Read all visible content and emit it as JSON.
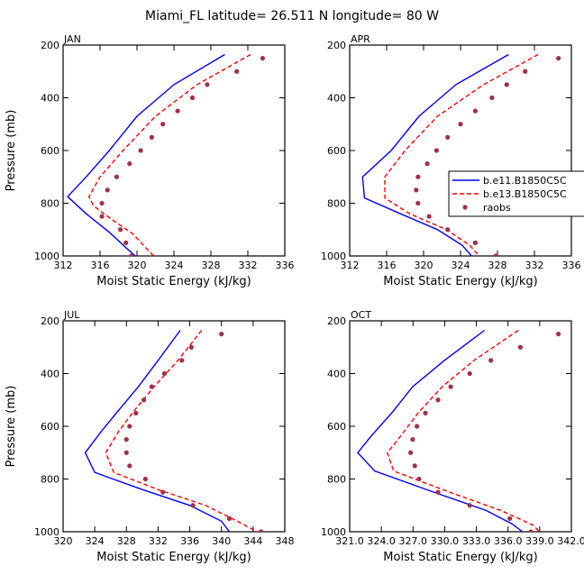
{
  "figure": {
    "title": "Miami_FL  latitude= 26.511 N longitude= 80 W",
    "xlabel": "Moist Static Energy (kJ/kg)",
    "ylabel": "Pressure (mb)"
  },
  "legend": {
    "placement": "right-of-APR-panel",
    "entries": [
      {
        "label": "b.e11.B1850C5C",
        "style": "solid",
        "color": "#0000ff"
      },
      {
        "label": "b.e13.B1850C5C",
        "style": "dashed",
        "color": "#ff0000"
      },
      {
        "label": "raobs",
        "style": "marker",
        "color": "#a0304a"
      }
    ]
  },
  "chart_data": [
    {
      "type": "line",
      "panel": "JAN",
      "xlim": [
        312,
        336
      ],
      "xticks": [
        312,
        316,
        320,
        324,
        328,
        332,
        336
      ],
      "xtick_labels": [
        "312",
        "316",
        "320",
        "324",
        "328",
        "332",
        "336"
      ],
      "ylim": [
        1000,
        200
      ],
      "yticks": [
        200,
        400,
        600,
        800,
        1000
      ],
      "series": [
        {
          "name": "b.e11.B1850C5C",
          "color": "#0000ff",
          "style": "solid",
          "points": [
            [
              329.5,
              236
            ],
            [
              324,
              350
            ],
            [
              320,
              470
            ],
            [
              317,
              600
            ],
            [
              314.5,
              700
            ],
            [
              312.5,
              775
            ],
            [
              314.5,
              840
            ],
            [
              317,
              910
            ],
            [
              319,
              975
            ],
            [
              319.8,
              1000
            ]
          ]
        },
        {
          "name": "b.e13.B1850C5C",
          "color": "#ff0000",
          "style": "dashed",
          "points": [
            [
              332.3,
              236
            ],
            [
              326.5,
              350
            ],
            [
              322,
              470
            ],
            [
              318.5,
              600
            ],
            [
              316,
              700
            ],
            [
              314.8,
              775
            ],
            [
              315.3,
              810
            ],
            [
              316.8,
              850
            ],
            [
              319.5,
              915
            ],
            [
              321.8,
              1000
            ]
          ]
        },
        {
          "name": "raobs",
          "color": "#a0304a",
          "style": "marker",
          "points": [
            [
              333.6,
              250
            ],
            [
              330.8,
              300
            ],
            [
              327.6,
              350
            ],
            [
              326,
              400
            ],
            [
              324.4,
              450
            ],
            [
              322.8,
              500
            ],
            [
              321.6,
              550
            ],
            [
              320.4,
              600
            ],
            [
              319.2,
              650
            ],
            [
              317.8,
              700
            ],
            [
              316.8,
              750
            ],
            [
              316.2,
              800
            ],
            [
              316.2,
              850
            ],
            [
              318.2,
              900
            ],
            [
              318.8,
              950
            ],
            [
              319.4,
              1000
            ]
          ]
        }
      ]
    },
    {
      "type": "line",
      "panel": "APR",
      "xlim": [
        312,
        336
      ],
      "xticks": [
        312,
        316,
        320,
        324,
        328,
        332,
        336
      ],
      "xtick_labels": [
        "312",
        "316",
        "320",
        "324",
        "328",
        "332",
        "336"
      ],
      "ylim": [
        1000,
        200
      ],
      "yticks": [
        200,
        400,
        600,
        800,
        1000
      ],
      "series": [
        {
          "name": "b.e11.B1850C5C",
          "color": "#0000ff",
          "style": "solid",
          "points": [
            [
              329.2,
              236
            ],
            [
              323.5,
              350
            ],
            [
              319.5,
              470
            ],
            [
              316.5,
              600
            ],
            [
              313.4,
              700
            ],
            [
              313.6,
              780
            ],
            [
              317.5,
              840
            ],
            [
              321.5,
              900
            ],
            [
              324.2,
              960
            ],
            [
              325.2,
              1000
            ]
          ]
        },
        {
          "name": "b.e13.B1850C5C",
          "color": "#ff0000",
          "style": "dashed",
          "points": [
            [
              332.4,
              236
            ],
            [
              326.5,
              350
            ],
            [
              321.5,
              470
            ],
            [
              318,
              600
            ],
            [
              315.8,
              700
            ],
            [
              315.8,
              780
            ],
            [
              318.5,
              840
            ],
            [
              322.5,
              900
            ],
            [
              325,
              960
            ],
            [
              326,
              1000
            ]
          ]
        },
        {
          "name": "raobs",
          "color": "#a0304a",
          "style": "marker",
          "points": [
            [
              334.6,
              250
            ],
            [
              331,
              300
            ],
            [
              329,
              350
            ],
            [
              327.4,
              400
            ],
            [
              325.6,
              450
            ],
            [
              324,
              500
            ],
            [
              322.6,
              550
            ],
            [
              321.4,
              600
            ],
            [
              320.4,
              650
            ],
            [
              319.4,
              700
            ],
            [
              319.2,
              750
            ],
            [
              319.4,
              800
            ],
            [
              320.6,
              850
            ],
            [
              322.6,
              900
            ],
            [
              325.6,
              950
            ],
            [
              327.8,
              1000
            ]
          ]
        }
      ]
    },
    {
      "type": "line",
      "panel": "JUL",
      "xlim": [
        320,
        348
      ],
      "xticks": [
        320,
        324,
        328,
        332,
        336,
        340,
        344,
        348
      ],
      "xtick_labels": [
        "320",
        "324",
        "328",
        "332",
        "336",
        "340",
        "344",
        "348"
      ],
      "ylim": [
        1000,
        200
      ],
      "yticks": [
        200,
        400,
        600,
        800,
        1000
      ],
      "series": [
        {
          "name": "b.e11.B1850C5C",
          "color": "#0000ff",
          "style": "solid",
          "points": [
            [
              334.8,
              236
            ],
            [
              332,
              350
            ],
            [
              329.5,
              450
            ],
            [
              327,
              540
            ],
            [
              324.8,
              620
            ],
            [
              322.8,
              700
            ],
            [
              324,
              775
            ],
            [
              330,
              840
            ],
            [
              336,
              900
            ],
            [
              340,
              960
            ],
            [
              341,
              1000
            ]
          ]
        },
        {
          "name": "b.e13.B1850C5C",
          "color": "#ff0000",
          "style": "dashed",
          "points": [
            [
              337.5,
              236
            ],
            [
              334.5,
              350
            ],
            [
              331.5,
              450
            ],
            [
              329,
              540
            ],
            [
              327,
              620
            ],
            [
              325.4,
              700
            ],
            [
              326.4,
              775
            ],
            [
              332,
              840
            ],
            [
              338,
              900
            ],
            [
              342,
              960
            ],
            [
              344.5,
              1000
            ]
          ]
        },
        {
          "name": "raobs",
          "color": "#a0304a",
          "style": "marker",
          "points": [
            [
              340,
              250
            ],
            [
              336.2,
              300
            ],
            [
              335,
              350
            ],
            [
              332.8,
              400
            ],
            [
              331.2,
              450
            ],
            [
              330.2,
              500
            ],
            [
              329.2,
              550
            ],
            [
              328.4,
              600
            ],
            [
              328,
              650
            ],
            [
              328,
              700
            ],
            [
              328.4,
              750
            ],
            [
              330.4,
              800
            ],
            [
              332.6,
              850
            ],
            [
              336.4,
              900
            ],
            [
              341,
              950
            ],
            [
              345,
              1000
            ]
          ]
        }
      ]
    },
    {
      "type": "line",
      "panel": "OCT",
      "xlim": [
        321.03,
        342.03
      ],
      "xticks": [
        321.03,
        324.03,
        327.03,
        330.03,
        333.03,
        336.03,
        339.03,
        342.03
      ],
      "xtick_labels": [
        "321.0",
        "324.0",
        "327.0",
        "330.0",
        "333.0",
        "336.0",
        "339.0",
        "342.0"
      ],
      "ylim": [
        1000,
        200
      ],
      "yticks": [
        200,
        400,
        600,
        800,
        1000
      ],
      "series": [
        {
          "name": "b.e11.B1850C5C",
          "color": "#0000ff",
          "style": "solid",
          "points": [
            [
              333.8,
              236
            ],
            [
              330,
              350
            ],
            [
              327,
              450
            ],
            [
              325,
              550
            ],
            [
              323,
              640
            ],
            [
              321.8,
              700
            ],
            [
              323.4,
              770
            ],
            [
              329,
              850
            ],
            [
              334,
              920
            ],
            [
              336.4,
              970
            ],
            [
              337.4,
              1000
            ]
          ]
        },
        {
          "name": "b.e13.B1850C5C",
          "color": "#ff0000",
          "style": "dashed",
          "points": [
            [
              337,
              236
            ],
            [
              332.8,
              350
            ],
            [
              329.8,
              450
            ],
            [
              327.5,
              550
            ],
            [
              325.8,
              640
            ],
            [
              324.6,
              700
            ],
            [
              325.2,
              770
            ],
            [
              330.5,
              850
            ],
            [
              335.4,
              920
            ],
            [
              338.4,
              975
            ],
            [
              339,
              1000
            ]
          ]
        },
        {
          "name": "raobs",
          "color": "#a0304a",
          "style": "marker",
          "points": [
            [
              340.8,
              250
            ],
            [
              337.2,
              300
            ],
            [
              334.4,
              350
            ],
            [
              332.4,
              400
            ],
            [
              330.6,
              450
            ],
            [
              329.4,
              500
            ],
            [
              328.2,
              550
            ],
            [
              327.4,
              600
            ],
            [
              327,
              650
            ],
            [
              326.8,
              700
            ],
            [
              327.2,
              750
            ],
            [
              327.6,
              800
            ],
            [
              329.4,
              850
            ],
            [
              332.4,
              900
            ],
            [
              336.2,
              950
            ],
            [
              338.2,
              1000
            ]
          ]
        }
      ]
    }
  ]
}
